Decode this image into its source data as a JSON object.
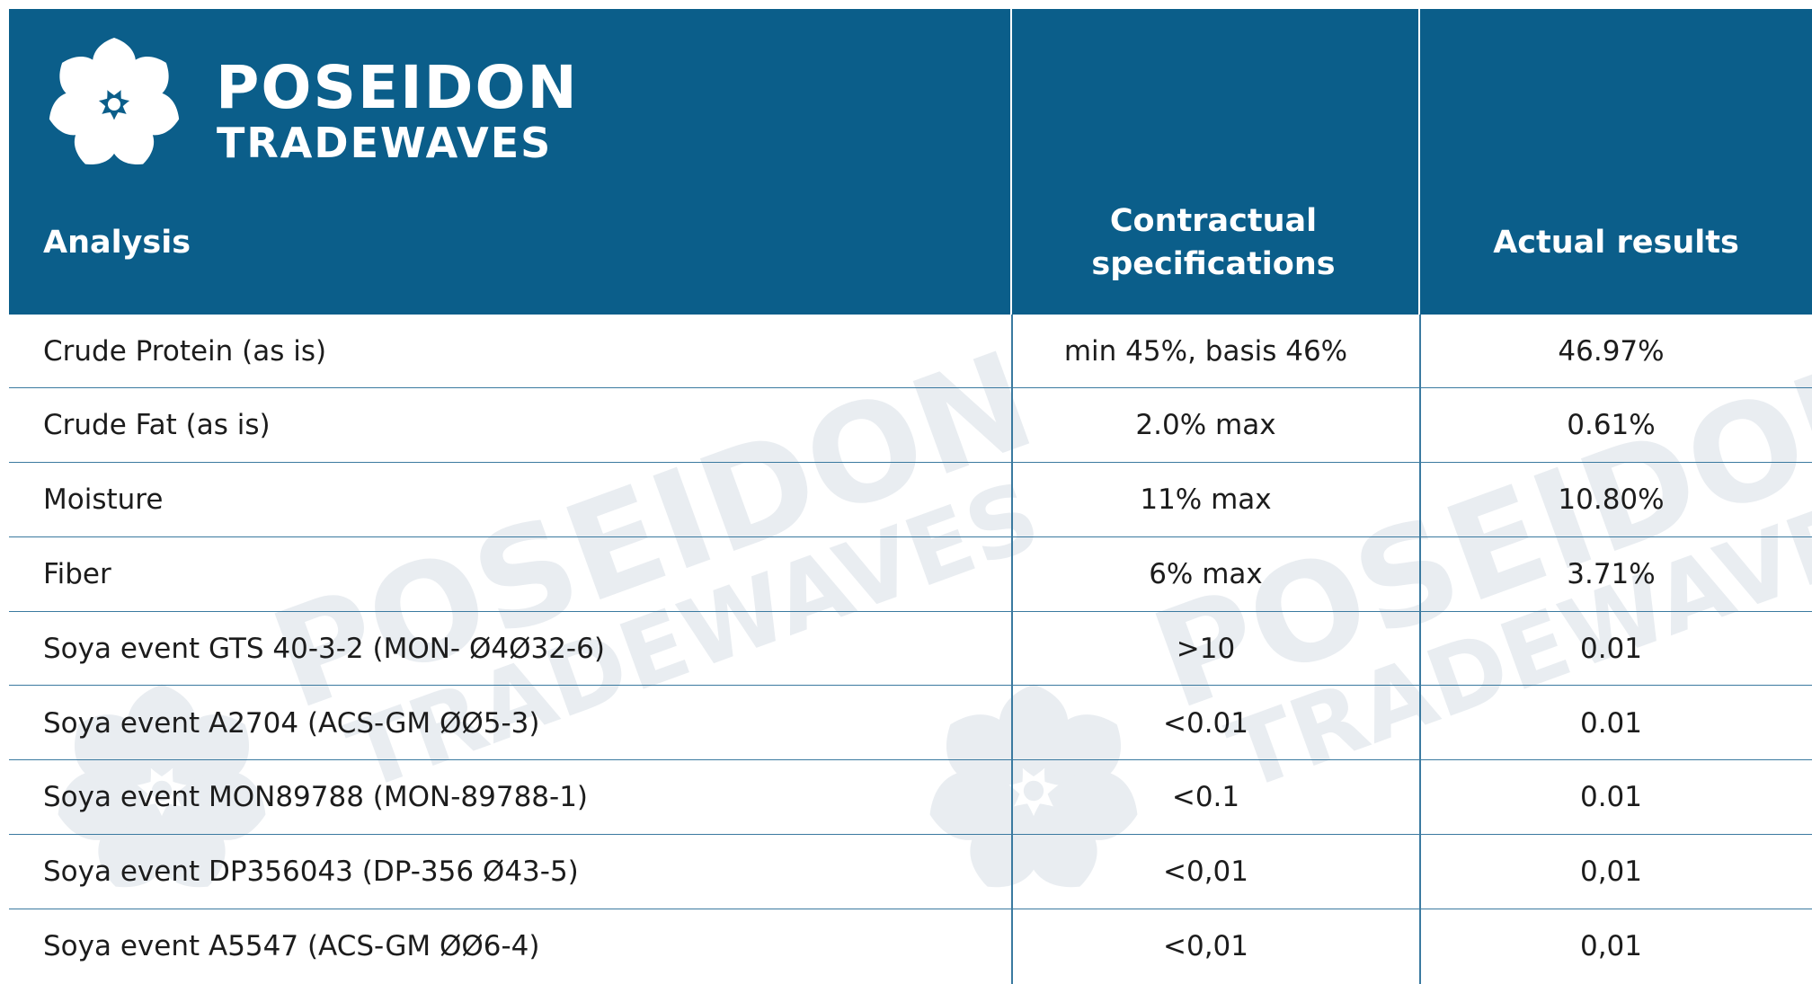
{
  "logo": {
    "line1": "POSEIDON",
    "line2": "TRADEWAVES"
  },
  "table": {
    "header": [
      "Analysis",
      "Contractual specifications",
      "Actual results"
    ],
    "rows": [
      [
        "Crude Protein (as is)",
        "min 45%, basis 46%",
        "46.97%"
      ],
      [
        "Crude Fat (as is)",
        "2.0% max",
        "0.61%"
      ],
      [
        "Moisture",
        "11% max",
        "10.80%"
      ],
      [
        "Fiber",
        "6% max",
        "3.71%"
      ],
      [
        "Soya event GTS 40-3-2 (MON- Ø4Ø32-6)",
        ">10",
        "0.01"
      ],
      [
        "Soya event A2704 (ACS-GM ØØ5-3)",
        "<0.01",
        "0.01"
      ],
      [
        "Soya event MON89788 (MON-89788-1)",
        "<0.1",
        "0.01"
      ],
      [
        "Soya event DP356043 (DP-356 Ø43-5)",
        "<0,01",
        "0,01"
      ],
      [
        "Soya event A5547 (ACS-GM ØØ6-4)",
        "<0,01",
        "0,01"
      ]
    ]
  }
}
